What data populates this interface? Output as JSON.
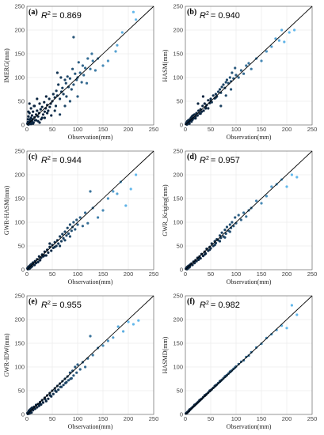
{
  "colors": {
    "low": "#0b2540",
    "high": "#63b8ec",
    "grid": "#e6e6e6",
    "line": "#000000"
  },
  "chart_data": [
    {
      "type": "scatter",
      "panel": "(a)",
      "r2_label": "R",
      "r2_value": "= 0.869",
      "xlabel": "Observation(mm)",
      "ylabel": "IMERG(mm)",
      "xlim": [
        0,
        250
      ],
      "ylim": [
        0,
        250
      ],
      "xticks": [
        "0",
        "50",
        "100",
        "150",
        "200",
        "250"
      ],
      "yticks": [
        "0",
        "50",
        "100",
        "150",
        "200",
        "250"
      ],
      "reference_line": "1:1",
      "grid": true,
      "x": [
        1,
        2,
        3,
        3,
        4,
        5,
        5,
        6,
        7,
        8,
        8,
        9,
        10,
        11,
        12,
        13,
        14,
        15,
        16,
        18,
        20,
        22,
        24,
        25,
        27,
        28,
        30,
        32,
        34,
        35,
        37,
        38,
        40,
        42,
        44,
        45,
        47,
        50,
        52,
        55,
        57,
        58,
        60,
        62,
        65,
        67,
        68,
        70,
        72,
        75,
        77,
        78,
        80,
        82,
        85,
        88,
        90,
        92,
        95,
        98,
        100,
        102,
        105,
        108,
        110,
        112,
        115,
        120,
        125,
        130,
        135,
        140,
        150,
        160,
        175,
        178,
        188,
        210,
        215,
        92,
        60,
        35,
        25,
        15,
        10,
        5,
        3,
        2,
        8,
        12,
        18,
        22,
        30,
        40,
        55,
        65,
        75,
        85,
        100,
        118,
        128,
        48,
        20,
        6
      ],
      "y": [
        3,
        12,
        1,
        18,
        6,
        25,
        2,
        9,
        4,
        15,
        35,
        7,
        20,
        12,
        28,
        5,
        40,
        16,
        10,
        22,
        30,
        18,
        25,
        45,
        33,
        12,
        38,
        22,
        48,
        28,
        35,
        60,
        42,
        30,
        55,
        38,
        45,
        50,
        65,
        58,
        40,
        72,
        62,
        85,
        55,
        100,
        70,
        78,
        65,
        95,
        88,
        60,
        102,
        80,
        98,
        75,
        118,
        85,
        108,
        95,
        100,
        132,
        110,
        90,
        125,
        105,
        120,
        140,
        118,
        135,
        115,
        140,
        125,
        135,
        155,
        168,
        195,
        238,
        222,
        185,
        110,
        15,
        5,
        40,
        8,
        45,
        28,
        6,
        2,
        3,
        10,
        8,
        15,
        25,
        30,
        22,
        40,
        50,
        60,
        88,
        150,
        20,
        55,
        12
      ]
    },
    {
      "type": "scatter",
      "panel": "(b)",
      "r2_label": "R",
      "r2_value": "= 0.940",
      "xlabel": "Observation(mm)",
      "ylabel": "HASM(mm)",
      "xlim": [
        0,
        250
      ],
      "ylim": [
        0,
        250
      ],
      "xticks": [
        "0",
        "50",
        "100",
        "150",
        "200",
        "250"
      ],
      "yticks": [
        "0",
        "50",
        "100",
        "150",
        "200",
        "250"
      ],
      "reference_line": "1:1",
      "grid": true,
      "x": [
        1,
        2,
        3,
        4,
        5,
        6,
        7,
        8,
        9,
        10,
        11,
        12,
        13,
        14,
        15,
        16,
        18,
        20,
        22,
        24,
        26,
        28,
        30,
        32,
        34,
        36,
        38,
        40,
        42,
        45,
        48,
        50,
        52,
        55,
        58,
        60,
        62,
        65,
        68,
        70,
        72,
        75,
        78,
        80,
        82,
        85,
        88,
        90,
        92,
        95,
        98,
        100,
        105,
        110,
        115,
        120,
        125,
        130,
        140,
        150,
        160,
        170,
        178,
        185,
        190,
        195,
        205,
        215,
        5,
        12,
        20,
        30,
        40,
        50,
        60,
        70,
        80,
        90,
        100,
        25,
        35,
        45
      ],
      "y": [
        2,
        5,
        1,
        8,
        4,
        10,
        6,
        3,
        12,
        9,
        15,
        7,
        18,
        11,
        20,
        14,
        22,
        17,
        25,
        20,
        30,
        24,
        33,
        28,
        40,
        30,
        45,
        38,
        42,
        52,
        46,
        55,
        48,
        62,
        56,
        65,
        60,
        70,
        75,
        68,
        80,
        85,
        78,
        90,
        95,
        88,
        100,
        92,
        110,
        98,
        120,
        105,
        100,
        115,
        108,
        125,
        130,
        118,
        140,
        135,
        155,
        165,
        182,
        178,
        200,
        175,
        195,
        200,
        3,
        8,
        14,
        24,
        35,
        50,
        58,
        40,
        62,
        75,
        105,
        45,
        60,
        35
      ]
    },
    {
      "type": "scatter",
      "panel": "(c)",
      "r2_label": "R",
      "r2_value": "= 0.944",
      "xlabel": "Observation(mm)",
      "ylabel": "GWR-HASM(mm)",
      "xlim": [
        0,
        250
      ],
      "ylim": [
        0,
        250
      ],
      "xticks": [
        "0",
        "50",
        "100",
        "150",
        "200",
        "250"
      ],
      "yticks": [
        "0",
        "50",
        "100",
        "150",
        "200",
        "250"
      ],
      "reference_line": "1:1",
      "grid": true,
      "x": [
        1,
        2,
        3,
        4,
        5,
        6,
        7,
        8,
        9,
        10,
        12,
        14,
        16,
        18,
        20,
        22,
        24,
        26,
        28,
        30,
        32,
        35,
        38,
        40,
        42,
        45,
        48,
        50,
        52,
        55,
        58,
        60,
        62,
        65,
        68,
        70,
        72,
        75,
        78,
        80,
        82,
        85,
        88,
        90,
        92,
        95,
        98,
        100,
        105,
        110,
        115,
        120,
        125,
        130,
        140,
        150,
        160,
        170,
        178,
        185,
        195,
        205,
        215,
        5,
        15,
        25,
        35,
        45,
        55,
        65,
        75,
        85
      ],
      "y": [
        3,
        1,
        6,
        2,
        8,
        4,
        10,
        5,
        12,
        7,
        15,
        10,
        18,
        14,
        22,
        16,
        28,
        20,
        25,
        32,
        28,
        38,
        30,
        42,
        36,
        48,
        40,
        52,
        46,
        58,
        50,
        62,
        55,
        70,
        60,
        75,
        66,
        80,
        72,
        88,
        76,
        95,
        82,
        90,
        100,
        85,
        105,
        95,
        110,
        92,
        120,
        98,
        165,
        130,
        110,
        125,
        150,
        165,
        160,
        185,
        135,
        170,
        200,
        2,
        10,
        20,
        30,
        55,
        48,
        50,
        62,
        70
      ]
    },
    {
      "type": "scatter",
      "panel": "(d)",
      "r2_label": "R",
      "r2_value": "= 0.957",
      "xlabel": "Observation(mm)",
      "ylabel": "GWR_Kriging(mm)",
      "xlim": [
        0,
        250
      ],
      "ylim": [
        0,
        250
      ],
      "xticks": [
        "0",
        "50",
        "100",
        "150",
        "200",
        "250"
      ],
      "yticks": [
        "0",
        "50",
        "100",
        "150",
        "200",
        "250"
      ],
      "reference_line": "1:1",
      "grid": true,
      "x": [
        1,
        2,
        3,
        4,
        5,
        6,
        7,
        8,
        9,
        10,
        12,
        14,
        16,
        18,
        20,
        22,
        24,
        26,
        28,
        30,
        32,
        35,
        38,
        40,
        42,
        45,
        48,
        50,
        52,
        55,
        58,
        60,
        62,
        65,
        68,
        70,
        72,
        75,
        78,
        80,
        82,
        85,
        88,
        90,
        92,
        95,
        98,
        100,
        105,
        110,
        115,
        120,
        125,
        130,
        140,
        150,
        160,
        170,
        180,
        190,
        200,
        210,
        220,
        8,
        18,
        28,
        38,
        48,
        58,
        68,
        78,
        88
      ],
      "y": [
        2,
        4,
        1,
        6,
        3,
        8,
        5,
        9,
        7,
        11,
        13,
        10,
        17,
        14,
        20,
        18,
        25,
        21,
        28,
        24,
        33,
        29,
        38,
        34,
        44,
        40,
        48,
        45,
        55,
        50,
        60,
        56,
        64,
        62,
        72,
        67,
        78,
        70,
        84,
        76,
        90,
        82,
        95,
        88,
        100,
        92,
        110,
        98,
        115,
        105,
        120,
        112,
        125,
        130,
        145,
        140,
        155,
        175,
        180,
        190,
        175,
        200,
        195,
        5,
        15,
        24,
        32,
        42,
        52,
        60,
        68,
        80
      ]
    },
    {
      "type": "scatter",
      "panel": "(e)",
      "r2_label": "R",
      "r2_value": "= 0.955",
      "xlabel": "Observation(mm)",
      "ylabel": "GWR-IDW(mm)",
      "xlim": [
        0,
        250
      ],
      "ylim": [
        0,
        250
      ],
      "xticks": [
        "0",
        "50",
        "100",
        "150",
        "200",
        "250"
      ],
      "yticks": [
        "0",
        "50",
        "100",
        "150",
        "200",
        "250"
      ],
      "reference_line": "1:1",
      "grid": true,
      "x": [
        1,
        2,
        3,
        4,
        5,
        6,
        7,
        8,
        9,
        10,
        12,
        14,
        16,
        18,
        20,
        22,
        24,
        26,
        28,
        30,
        32,
        35,
        38,
        40,
        42,
        45,
        48,
        50,
        52,
        55,
        58,
        60,
        62,
        65,
        68,
        70,
        72,
        75,
        78,
        80,
        82,
        85,
        88,
        90,
        92,
        95,
        98,
        100,
        105,
        110,
        115,
        120,
        125,
        130,
        140,
        150,
        160,
        170,
        180,
        190,
        200,
        210,
        220,
        6,
        16,
        26,
        36,
        46,
        56,
        66,
        76,
        86
      ],
      "y": [
        3,
        1,
        5,
        8,
        2,
        10,
        6,
        12,
        4,
        14,
        9,
        16,
        12,
        20,
        15,
        22,
        18,
        26,
        21,
        30,
        25,
        35,
        28,
        40,
        33,
        45,
        38,
        50,
        43,
        55,
        48,
        60,
        52,
        65,
        58,
        70,
        62,
        75,
        68,
        80,
        72,
        88,
        76,
        92,
        82,
        100,
        88,
        105,
        95,
        110,
        100,
        118,
        165,
        125,
        140,
        145,
        155,
        162,
        185,
        175,
        195,
        190,
        198,
        4,
        12,
        22,
        32,
        40,
        50,
        58,
        66,
        75
      ]
    },
    {
      "type": "scatter",
      "panel": "(f)",
      "r2_label": "R",
      "r2_value": "= 0.982",
      "xlabel": "Observation(mm)",
      "ylabel": "HASMD(mm)",
      "xlim": [
        0,
        250
      ],
      "ylim": [
        0,
        250
      ],
      "xticks": [
        "0",
        "50",
        "100",
        "150",
        "200",
        "250"
      ],
      "yticks": [
        "0",
        "50",
        "100",
        "150",
        "200",
        "250"
      ],
      "reference_line": "1:1",
      "grid": true,
      "x": [
        1,
        2,
        3,
        4,
        5,
        6,
        7,
        8,
        9,
        10,
        12,
        14,
        16,
        18,
        20,
        22,
        24,
        26,
        28,
        30,
        32,
        35,
        38,
        40,
        42,
        45,
        48,
        50,
        52,
        55,
        58,
        60,
        62,
        65,
        68,
        70,
        72,
        75,
        78,
        80,
        82,
        85,
        88,
        90,
        92,
        95,
        98,
        100,
        105,
        110,
        115,
        120,
        125,
        130,
        140,
        150,
        160,
        170,
        180,
        190,
        200,
        210,
        220,
        8,
        18,
        28,
        38,
        48,
        58,
        68,
        78,
        88
      ],
      "y": [
        2,
        3,
        3,
        5,
        5,
        7,
        7,
        9,
        10,
        11,
        13,
        15,
        17,
        19,
        21,
        23,
        25,
        27,
        29,
        31,
        33,
        36,
        39,
        41,
        43,
        46,
        49,
        51,
        53,
        56,
        59,
        61,
        63,
        66,
        69,
        71,
        73,
        76,
        79,
        81,
        83,
        86,
        89,
        91,
        93,
        96,
        99,
        101,
        106,
        111,
        114,
        121,
        124,
        131,
        141,
        149,
        161,
        169,
        178,
        187,
        182,
        230,
        210,
        10,
        20,
        30,
        40,
        50,
        60,
        70,
        80,
        90
      ]
    }
  ]
}
